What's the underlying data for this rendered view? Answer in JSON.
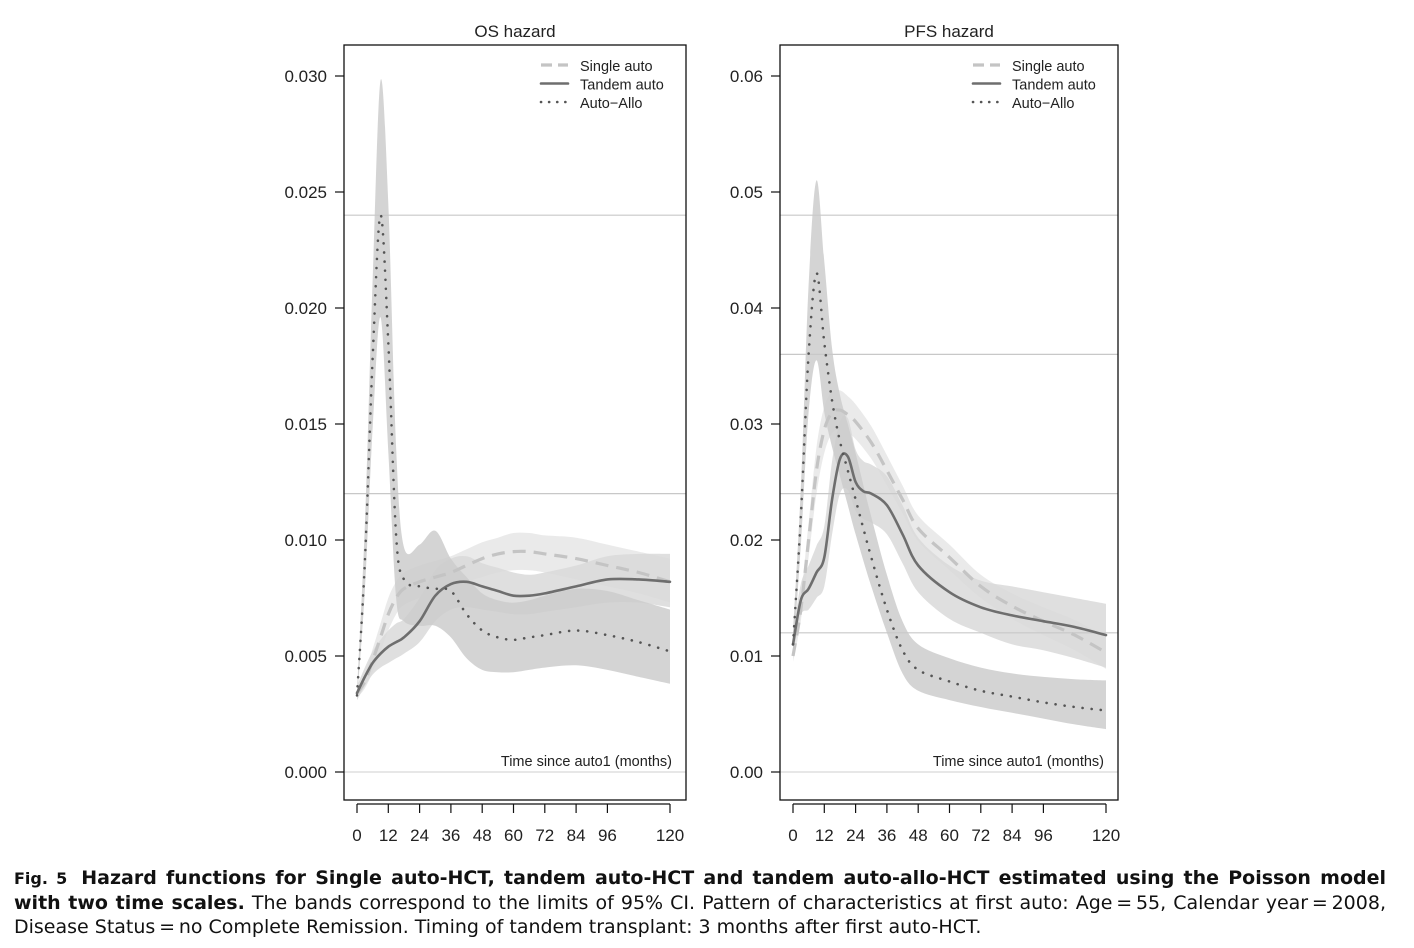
{
  "colors": {
    "single": "#c4c4c4",
    "tandem": "#6e6e6e",
    "allo": "#555555",
    "band_single": "#e6e6e6",
    "band_tandem": "#d9d9d9",
    "band_allo": "#cdcdcd",
    "hline": "#c8c8c8"
  },
  "chart_data": [
    {
      "type": "line",
      "title": "OS hazard",
      "xlabel": "Time since auto1 (months)",
      "ylabel": "",
      "xlim": [
        0,
        120
      ],
      "ylim": [
        0,
        0.03
      ],
      "xticks": [
        0,
        12,
        24,
        36,
        48,
        60,
        72,
        84,
        96,
        120
      ],
      "xtick_labels": [
        "0",
        "12",
        "24",
        "36",
        "48",
        "60",
        "72",
        "84",
        "96",
        "120"
      ],
      "yticks": [
        0,
        0.005,
        0.01,
        0.015,
        0.02,
        0.025,
        0.03
      ],
      "ytick_labels": [
        "0.000",
        "0.005",
        "0.010",
        "0.015",
        "0.020",
        "0.025",
        "0.030"
      ],
      "reference_lines_y": [
        0.012,
        0.024
      ],
      "legend": {
        "position": "top-right",
        "entries": [
          "Single auto",
          "Tandem auto",
          "Auto−Allo"
        ]
      },
      "series": [
        {
          "name": "Single auto",
          "style": "dashed",
          "x": [
            0,
            3,
            6,
            9,
            12,
            15,
            18,
            24,
            30,
            36,
            42,
            48,
            54,
            60,
            66,
            72,
            84,
            96,
            108,
            120
          ],
          "y": [
            0.0034,
            0.0039,
            0.0048,
            0.0058,
            0.0068,
            0.0075,
            0.0079,
            0.0082,
            0.0084,
            0.0086,
            0.0089,
            0.0092,
            0.0094,
            0.0095,
            0.0095,
            0.0094,
            0.0092,
            0.0089,
            0.0086,
            0.0082
          ],
          "lower": [
            0.0032,
            0.0036,
            0.0043,
            0.0052,
            0.0061,
            0.0068,
            0.0072,
            0.0075,
            0.0077,
            0.0079,
            0.0082,
            0.0084,
            0.0086,
            0.0087,
            0.0087,
            0.0086,
            0.0083,
            0.008,
            0.0077,
            0.0073
          ],
          "upper": [
            0.0036,
            0.0042,
            0.0053,
            0.0064,
            0.0075,
            0.0082,
            0.0086,
            0.0089,
            0.0091,
            0.0093,
            0.0096,
            0.0099,
            0.0101,
            0.0103,
            0.0103,
            0.0102,
            0.0101,
            0.0098,
            0.0095,
            0.0092
          ]
        },
        {
          "name": "Tandem auto",
          "style": "solid",
          "x": [
            0,
            3,
            6,
            9,
            12,
            15,
            18,
            24,
            30,
            36,
            42,
            48,
            54,
            60,
            66,
            72,
            84,
            96,
            108,
            120
          ],
          "y": [
            0.0034,
            0.0041,
            0.0047,
            0.0051,
            0.0054,
            0.0056,
            0.0058,
            0.0065,
            0.0076,
            0.0081,
            0.0082,
            0.008,
            0.0078,
            0.0076,
            0.0076,
            0.0077,
            0.008,
            0.0083,
            0.0083,
            0.0082
          ],
          "lower": [
            0.0031,
            0.0037,
            0.0042,
            0.0045,
            0.0047,
            0.0049,
            0.0051,
            0.0056,
            0.0065,
            0.007,
            0.0071,
            0.007,
            0.0069,
            0.0068,
            0.0068,
            0.0069,
            0.0071,
            0.0073,
            0.0073,
            0.0071
          ],
          "upper": [
            0.0037,
            0.0045,
            0.0052,
            0.0057,
            0.0061,
            0.0064,
            0.0066,
            0.0075,
            0.0087,
            0.0092,
            0.0093,
            0.009,
            0.0088,
            0.0086,
            0.0085,
            0.0086,
            0.0089,
            0.0093,
            0.0094,
            0.0094
          ]
        },
        {
          "name": "Auto−Allo",
          "style": "dotted",
          "x": [
            0,
            3,
            6,
            9,
            12,
            15,
            18,
            24,
            30,
            36,
            42,
            48,
            54,
            60,
            66,
            72,
            84,
            96,
            108,
            120
          ],
          "y": [
            0.0033,
            0.009,
            0.0178,
            0.024,
            0.0185,
            0.0102,
            0.0083,
            0.008,
            0.0079,
            0.0078,
            0.0068,
            0.0061,
            0.0058,
            0.0057,
            0.0058,
            0.0059,
            0.0061,
            0.0059,
            0.0056,
            0.0052
          ],
          "lower": [
            0.0031,
            0.0078,
            0.0148,
            0.0196,
            0.0138,
            0.0075,
            0.0065,
            0.0063,
            0.0063,
            0.0058,
            0.0049,
            0.0044,
            0.0043,
            0.0043,
            0.0044,
            0.0045,
            0.0046,
            0.0044,
            0.0041,
            0.0038
          ],
          "upper": [
            0.0035,
            0.0106,
            0.0212,
            0.0298,
            0.0245,
            0.014,
            0.0097,
            0.0098,
            0.0104,
            0.0092,
            0.0084,
            0.0077,
            0.0074,
            0.0073,
            0.0074,
            0.0076,
            0.0079,
            0.0078,
            0.0074,
            0.007
          ]
        }
      ]
    },
    {
      "type": "line",
      "title": "PFS hazard",
      "xlabel": "Time since auto1 (months)",
      "ylabel": "",
      "xlim": [
        0,
        120
      ],
      "ylim": [
        0,
        0.06
      ],
      "xticks": [
        0,
        12,
        24,
        36,
        48,
        60,
        72,
        84,
        96,
        120
      ],
      "xtick_labels": [
        "0",
        "12",
        "24",
        "36",
        "48",
        "60",
        "72",
        "84",
        "96",
        "120"
      ],
      "yticks": [
        0,
        0.01,
        0.02,
        0.03,
        0.04,
        0.05,
        0.06
      ],
      "ytick_labels": [
        "0.00",
        "0.01",
        "0.02",
        "0.03",
        "0.04",
        "0.05",
        "0.06"
      ],
      "reference_lines_y": [
        0.012,
        0.024,
        0.036,
        0.048
      ],
      "legend": {
        "position": "top-right",
        "entries": [
          "Single auto",
          "Tandem auto",
          "Auto−Allo"
        ]
      },
      "series": [
        {
          "name": "Single auto",
          "style": "dashed",
          "x": [
            0,
            3,
            6,
            9,
            12,
            15,
            18,
            21,
            24,
            30,
            36,
            42,
            48,
            60,
            72,
            84,
            96,
            108,
            120
          ],
          "y": [
            0.01,
            0.014,
            0.02,
            0.026,
            0.0295,
            0.031,
            0.0312,
            0.0308,
            0.0302,
            0.0284,
            0.026,
            0.0235,
            0.021,
            0.0185,
            0.016,
            0.0143,
            0.013,
            0.0118,
            0.0103
          ],
          "lower": [
            0.0095,
            0.013,
            0.0185,
            0.024,
            0.0275,
            0.0292,
            0.0295,
            0.0292,
            0.0287,
            0.027,
            0.0247,
            0.0223,
            0.0199,
            0.0174,
            0.015,
            0.0132,
            0.0118,
            0.0105,
            0.0089
          ],
          "upper": [
            0.0105,
            0.015,
            0.0215,
            0.028,
            0.0315,
            0.0328,
            0.0329,
            0.0324,
            0.0317,
            0.0298,
            0.0273,
            0.0247,
            0.0221,
            0.0196,
            0.017,
            0.0154,
            0.0142,
            0.0131,
            0.0117
          ]
        },
        {
          "name": "Tandem auto",
          "style": "solid",
          "x": [
            0,
            3,
            6,
            9,
            12,
            15,
            18,
            21,
            24,
            27,
            30,
            36,
            42,
            48,
            60,
            72,
            84,
            96,
            108,
            120
          ],
          "y": [
            0.011,
            0.0148,
            0.0158,
            0.0172,
            0.0185,
            0.0235,
            0.027,
            0.0272,
            0.025,
            0.0242,
            0.024,
            0.023,
            0.0205,
            0.0178,
            0.0155,
            0.0142,
            0.0135,
            0.013,
            0.0125,
            0.0118
          ],
          "lower": [
            0.01,
            0.0135,
            0.014,
            0.015,
            0.016,
            0.0205,
            0.024,
            0.0243,
            0.0225,
            0.0218,
            0.0215,
            0.0205,
            0.018,
            0.0155,
            0.0132,
            0.012,
            0.011,
            0.0105,
            0.0098,
            0.009
          ],
          "upper": [
            0.012,
            0.0162,
            0.0178,
            0.0195,
            0.0212,
            0.0268,
            0.0302,
            0.0305,
            0.0278,
            0.0268,
            0.0265,
            0.0255,
            0.023,
            0.0202,
            0.0178,
            0.0165,
            0.016,
            0.0155,
            0.015,
            0.0145
          ]
        },
        {
          "name": "Auto−Allo",
          "style": "dotted",
          "x": [
            0,
            3,
            6,
            9,
            12,
            15,
            18,
            21,
            24,
            30,
            36,
            42,
            48,
            60,
            72,
            84,
            96,
            108,
            120
          ],
          "y": [
            0.011,
            0.022,
            0.036,
            0.043,
            0.037,
            0.032,
            0.0285,
            0.026,
            0.0235,
            0.0185,
            0.014,
            0.0105,
            0.0088,
            0.0078,
            0.007,
            0.0065,
            0.006,
            0.0056,
            0.0053
          ],
          "lower": [
            0.01,
            0.0195,
            0.031,
            0.0355,
            0.031,
            0.028,
            0.0255,
            0.023,
            0.0205,
            0.016,
            0.012,
            0.0085,
            0.007,
            0.0062,
            0.0056,
            0.0051,
            0.0046,
            0.0041,
            0.0037
          ],
          "upper": [
            0.012,
            0.0245,
            0.042,
            0.051,
            0.044,
            0.0365,
            0.0325,
            0.03,
            0.0275,
            0.022,
            0.017,
            0.013,
            0.011,
            0.0098,
            0.009,
            0.0085,
            0.0082,
            0.008,
            0.0079
          ]
        }
      ]
    }
  ],
  "caption": {
    "label": "Fig. 5",
    "bold_text": "Hazard functions for Single auto-HCT, tandem auto-HCT and tandem auto-allo-HCT estimated using the Poisson model with two time scales.",
    "text": " The bands correspond to the limits of 95% CI. Pattern of characteristics at first auto: Age = 55, Calendar year = 2008, Disease Status = no Complete Remission. Timing of tandem transplant: 3 months after first auto-HCT."
  }
}
